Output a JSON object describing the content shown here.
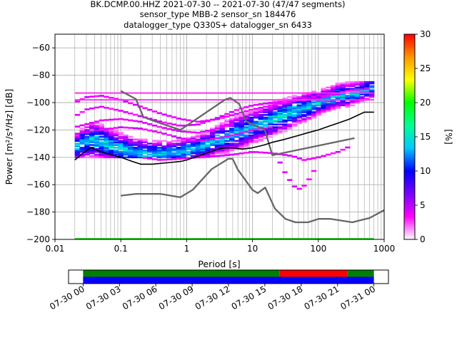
{
  "title_lines": [
    "BK.DCMP.00.HHZ   2021-07-30 -- 2021-07-30  (47/47 segments)",
    "sensor_type MBB-2 sensor_sn 184476",
    "datalogger_type Q330S+ datalogger_sn 6433"
  ],
  "chart_data": [
    {
      "type": "heatmap",
      "subtype": "probabilistic-power-spectral-density",
      "xlabel": "Period [s]",
      "ylabel": "Power [m²/s⁴/Hz] [dB]",
      "x_scale": "log",
      "xlim": [
        0.01,
        1000
      ],
      "ylim": [
        -200,
        -50
      ],
      "x_ticks": [
        0.01,
        0.1,
        1,
        10,
        100,
        1000
      ],
      "x_tick_labels": [
        "0.01",
        "0.1",
        "1",
        "10",
        "100",
        "1000"
      ],
      "y_ticks": [
        -200,
        -180,
        -160,
        -140,
        -120,
        -100,
        -80,
        -60
      ],
      "y_tick_labels": [
        "−200",
        "−180",
        "−160",
        "−140",
        "−120",
        "−100",
        "−80",
        "−60"
      ],
      "grid": true,
      "colorbar": {
        "label": "[%]",
        "range": [
          0,
          30
        ],
        "ticks": [
          0,
          5,
          10,
          15,
          20,
          25,
          30
        ],
        "colors": [
          "#ffffff",
          "#ff00ff",
          "#7a00ff",
          "#0000ff",
          "#00c8ff",
          "#00ff96",
          "#00ff00",
          "#ffff00",
          "#ff9600",
          "#ff0000"
        ]
      },
      "noise_models": {
        "color": "#666666",
        "new_high_noise_model": {
          "x": [
            0.1,
            0.17,
            0.22,
            0.32,
            0.8,
            3.8,
            4.6,
            6.3,
            7.9,
            15.4,
            20.0,
            354.8
          ],
          "y": [
            -91.5,
            -97.4,
            -110.5,
            -113.5,
            -120.0,
            -97.9,
            -96.5,
            -101.0,
            -113.5,
            -120.0,
            -138.5,
            -126.0
          ]
        },
        "new_low_noise_model": {
          "x": [
            0.1,
            0.17,
            0.4,
            0.8,
            1.24,
            2.4,
            4.3,
            5.0,
            6.0,
            10.0,
            12.0,
            15.6,
            21.9,
            31.6,
            45.0,
            70.0,
            101.0,
            154.0,
            328.0,
            600.0,
            1000.0
          ],
          "y": [
            -168.0,
            -166.7,
            -166.7,
            -169.2,
            -163.7,
            -148.6,
            -141.1,
            -141.1,
            -149.0,
            -163.8,
            -166.2,
            -162.1,
            -177.5,
            -185.0,
            -187.5,
            -187.5,
            -185.0,
            -185.0,
            -187.5,
            -184.4,
            -178.6
          ]
        }
      },
      "reference_line": {
        "color": "#000000",
        "x": [
          0.02,
          0.025,
          0.035,
          0.05,
          0.07,
          0.1,
          0.15,
          0.2,
          0.3,
          0.5,
          0.8,
          1,
          1.5,
          2,
          3,
          4,
          5,
          7,
          10,
          15,
          20,
          30,
          50,
          70,
          100,
          150,
          200,
          300,
          500,
          700
        ],
        "y": [
          -142,
          -138,
          -133,
          -136,
          -138,
          -140,
          -143,
          -145,
          -145,
          -144,
          -143,
          -142,
          -139,
          -137,
          -134,
          -133,
          -133,
          -134,
          -133,
          -131,
          -129,
          -127,
          -124,
          -122,
          -120,
          -117,
          -115,
          -112,
          -107,
          -107
        ]
      },
      "psd_bands": {
        "note": "Approximate occupancy of the PPSD histogram: main trend with spread, several thin distinct ridges, plus flat horizontal bands",
        "main_band": {
          "x": [
            0.02,
            0.03,
            0.04,
            0.06,
            0.1,
            0.15,
            0.2,
            0.3,
            0.5,
            0.8,
            1,
            2,
            3,
            4,
            5,
            7,
            10,
            15,
            20,
            30,
            50,
            70,
            100,
            150,
            200,
            300,
            500,
            700
          ],
          "y_center": [
            -133,
            -128,
            -127,
            -130,
            -134,
            -136,
            -137,
            -138,
            -137,
            -136,
            -135,
            -131,
            -127,
            -125,
            -123,
            -121,
            -118,
            -115,
            -112,
            -109,
            -105,
            -103,
            -100,
            -97,
            -95,
            -94,
            -91,
            -89
          ],
          "y_spread": [
            6,
            8,
            9,
            8,
            8,
            7,
            7,
            7,
            6,
            6,
            6,
            6,
            7,
            8,
            8,
            8,
            8,
            8,
            8,
            8,
            7,
            7,
            6,
            6,
            6,
            6,
            5,
            5
          ]
        },
        "ridges": [
          {
            "x": [
              0.02,
              0.03,
              0.05,
              0.1,
              0.2,
              0.4,
              0.8,
              1.5,
              3,
              6,
              10,
              20,
              40,
              70,
              100,
              200,
              300,
              600
            ],
            "y": [
              -110,
              -105,
              -103,
              -106,
              -110,
              -114,
              -117,
              -116,
              -111,
              -105,
              -102,
              -100,
              -99,
              -98,
              -97,
              -93,
              -91,
              -90
            ]
          },
          {
            "x": [
              0.02,
              0.03,
              0.05,
              0.1,
              0.2,
              0.4,
              0.8,
              1.5,
              3,
              6,
              10,
              20,
              40,
              70,
              100,
              200
            ],
            "y": [
              -100,
              -96,
              -95,
              -98,
              -103,
              -108,
              -112,
              -114,
              -112,
              -108,
              -105,
              -102,
              -99,
              -97,
              -95,
              -94
            ]
          },
          {
            "x": [
              0.02,
              0.05,
              0.1,
              0.2,
              0.4,
              0.8,
              1.5,
              3,
              6,
              10,
              20
            ],
            "y": [
              -123,
              -120,
              -118,
              -119,
              -122,
              -126,
              -128,
              -126,
              -123,
              -120,
              -118
            ]
          },
          {
            "x": [
              0.02,
              0.05,
              0.1,
              0.2,
              0.4,
              0.8,
              1.5,
              3,
              5
            ],
            "y": [
              -118,
              -113,
              -112,
              -114,
              -118,
              -121,
              -122,
              -119,
              -116
            ]
          },
          {
            "x": [
              25,
              30,
              35,
              40,
              45,
              50,
              55,
              60,
              70,
              80,
              90
            ],
            "y": [
              -142,
              -150,
              -155,
              -160,
              -162,
              -163,
              -163,
              -161,
              -157,
              -152,
              -148
            ]
          },
          {
            "x": [
              0.2,
              0.4,
              0.8,
              1.5,
              3,
              5,
              10,
              20,
              40,
              60,
              100,
              200,
              300
            ],
            "y": [
              -140,
              -142,
              -141,
              -140,
              -139,
              -138,
              -136,
              -137,
              -139,
              -142,
              -140,
              -136,
              -132
            ]
          }
        ],
        "flat_bands": [
          {
            "y": -93,
            "x_range": [
              0.02,
              700
            ]
          },
          {
            "y": -98,
            "x_range": [
              0.02,
              700
            ]
          }
        ],
        "bottom_line": {
          "y": -200,
          "x_range": [
            0.02,
            700
          ],
          "color": "#00cc00"
        }
      }
    },
    {
      "type": "timeline",
      "subtype": "data-availability",
      "x_tick_labels": [
        "07-30 00",
        "07-30 03",
        "07-30 06",
        "07-30 09",
        "07-30 12",
        "07-30 15",
        "07-30 18",
        "07-30 21",
        "07-31 00"
      ],
      "x_ticks_hours": [
        0,
        3,
        6,
        9,
        12,
        15,
        18,
        21,
        24
      ],
      "x_range_hours": [
        -1.2,
        25.2
      ],
      "rows": [
        {
          "segments": [
            {
              "start": 0,
              "end": 16.2,
              "color": "#008000"
            },
            {
              "start": 16.2,
              "end": 21.8,
              "color": "#ff0000"
            },
            {
              "start": 21.8,
              "end": 24,
              "color": "#008000"
            }
          ]
        },
        {
          "segments": [
            {
              "start": 0,
              "end": 24,
              "color": "#0000ff"
            }
          ]
        }
      ]
    }
  ]
}
